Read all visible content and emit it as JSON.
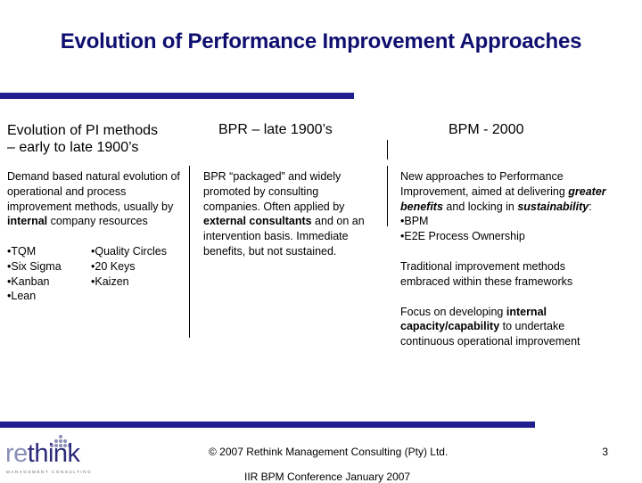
{
  "slide": {
    "title": "Evolution of Performance Improvement Approaches",
    "col1": {
      "heading_line1": "Evolution of PI methods",
      "heading_line2": "– early to late 1900’s",
      "intro_pre": "Demand based natural evolution of operational and process improvement methods, usually by ",
      "intro_bold": "internal",
      "intro_post": " company resources",
      "list_left": [
        "•TQM",
        "•Six Sigma",
        "•Kanban",
        "•Lean"
      ],
      "list_right": [
        "•Quality Circles",
        "•20 Keys",
        "•Kaizen"
      ]
    },
    "col2": {
      "heading": "BPR – late 1900’s",
      "text_pre": "BPR “packaged” and widely promoted by consulting companies. Often applied by ",
      "text_bold": "external consultants",
      "text_post": " and on an intervention basis. Immediate benefits, but not sustained."
    },
    "col3": {
      "heading": "BPM - 2000",
      "p1_pre": "New approaches to Performance Improvement, aimed at delivering ",
      "p1_bold1": "greater benefits",
      "p1_mid": " and locking in ",
      "p1_bold2": "sustainability",
      "p1_post": ":",
      "bullets": [
        "•BPM",
        "•E2E Process Ownership"
      ],
      "p2": "Traditional improvement methods embraced within these frameworks",
      "p3_pre": "Focus on developing ",
      "p3_bold": "internal capacity/capability",
      "p3_post": " to undertake continuous operational improvement"
    }
  },
  "footer": {
    "copyright": "© 2007 Rethink Management Consulting (Pty) Ltd.",
    "page_number": "3",
    "conference": "IIR BPM Conference January 2007"
  },
  "logo": {
    "text_re": "re",
    "text_think": "think",
    "tagline": "MANAGEMENT CONSULTING"
  },
  "colors": {
    "title": "#0f0f70",
    "bars": "#1f1f8f",
    "logo_dark": "#2b2b7a",
    "logo_light": "#8a8fb8"
  }
}
